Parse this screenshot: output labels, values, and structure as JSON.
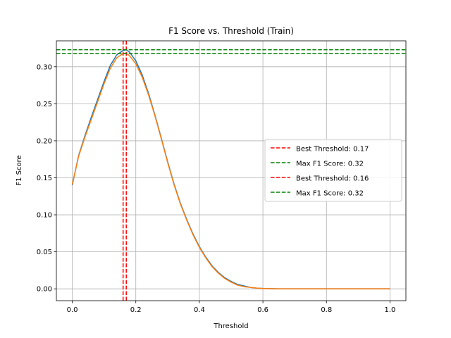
{
  "chart_data": {
    "type": "line",
    "title": "F1 Score vs. Threshold (Train)",
    "xlabel": "Threshold",
    "ylabel": "F1 Score",
    "xlim": [
      -0.05,
      1.05
    ],
    "ylim": [
      -0.016,
      0.335
    ],
    "grid": true,
    "legend_placement": "center-right",
    "xticks": [
      0.0,
      0.2,
      0.4,
      0.6,
      0.8,
      1.0
    ],
    "xtick_labels": [
      "0.0",
      "0.2",
      "0.4",
      "0.6",
      "0.8",
      "1.0"
    ],
    "yticks": [
      0.0,
      0.05,
      0.1,
      0.15,
      0.2,
      0.25,
      0.3
    ],
    "ytick_labels": [
      "0.00",
      "0.05",
      "0.10",
      "0.15",
      "0.20",
      "0.25",
      "0.30"
    ],
    "series": [
      {
        "color": "#1f77b4",
        "x": [
          0.0,
          0.02,
          0.04,
          0.06,
          0.08,
          0.1,
          0.12,
          0.14,
          0.16,
          0.17,
          0.18,
          0.2,
          0.22,
          0.24,
          0.26,
          0.28,
          0.3,
          0.32,
          0.34,
          0.36,
          0.38,
          0.4,
          0.42,
          0.44,
          0.46,
          0.48,
          0.5,
          0.52,
          0.54,
          0.56,
          0.58,
          0.6,
          0.65,
          0.7,
          0.8,
          0.9,
          1.0
        ],
        "y": [
          0.14,
          0.18,
          0.207,
          0.232,
          0.256,
          0.28,
          0.302,
          0.316,
          0.322,
          0.323,
          0.32,
          0.308,
          0.289,
          0.264,
          0.235,
          0.204,
          0.172,
          0.142,
          0.116,
          0.094,
          0.074,
          0.057,
          0.043,
          0.031,
          0.022,
          0.015,
          0.01,
          0.006,
          0.004,
          0.002,
          0.001,
          0.0005,
          0.0,
          0.0,
          0.0,
          0.0,
          0.0
        ]
      },
      {
        "color": "#ff7f0e",
        "x": [
          0.0,
          0.02,
          0.04,
          0.06,
          0.08,
          0.1,
          0.12,
          0.14,
          0.16,
          0.17,
          0.18,
          0.2,
          0.22,
          0.24,
          0.26,
          0.28,
          0.3,
          0.32,
          0.34,
          0.36,
          0.38,
          0.4,
          0.42,
          0.44,
          0.46,
          0.48,
          0.5,
          0.52,
          0.54,
          0.56,
          0.58,
          0.6,
          0.65,
          0.7,
          0.8,
          0.9,
          1.0
        ],
        "y": [
          0.141,
          0.179,
          0.205,
          0.229,
          0.253,
          0.277,
          0.298,
          0.312,
          0.318,
          0.318,
          0.315,
          0.304,
          0.286,
          0.262,
          0.234,
          0.203,
          0.171,
          0.141,
          0.115,
          0.093,
          0.073,
          0.056,
          0.042,
          0.03,
          0.021,
          0.014,
          0.009,
          0.005,
          0.003,
          0.002,
          0.001,
          0.0004,
          0.0,
          0.0,
          0.0,
          0.0,
          0.0
        ]
      }
    ],
    "reference_lines": [
      {
        "orientation": "vertical",
        "value": 0.17,
        "color": "#ff0000",
        "style": "dashed",
        "label": "Best Threshold: 0.17"
      },
      {
        "orientation": "horizontal",
        "value": 0.323,
        "color": "#008000",
        "style": "dashed",
        "label": "Max F1 Score: 0.32"
      },
      {
        "orientation": "vertical",
        "value": 0.16,
        "color": "#ff0000",
        "style": "dashed",
        "label": "Best Threshold: 0.16"
      },
      {
        "orientation": "horizontal",
        "value": 0.318,
        "color": "#008000",
        "style": "dashed",
        "label": "Max F1 Score: 0.32"
      }
    ]
  }
}
